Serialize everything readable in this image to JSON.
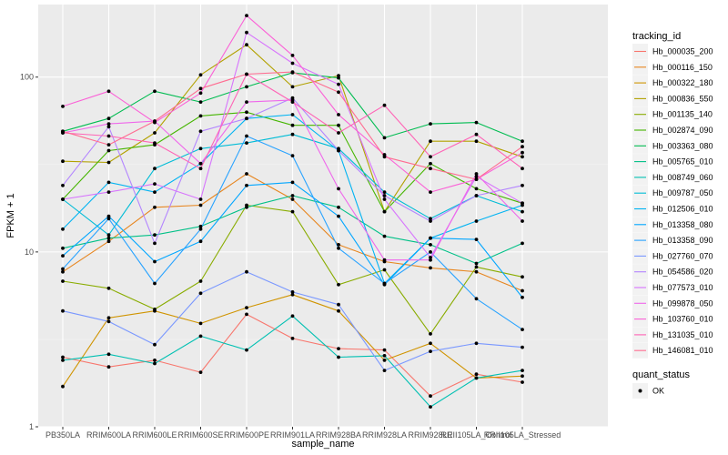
{
  "chart_data": {
    "type": "line",
    "xlabel": "sample_name",
    "ylabel": "FPKM + 1",
    "y_scale": "log10",
    "ylim": [
      1,
      260
    ],
    "y_ticks": [
      1,
      10,
      100
    ],
    "y_tick_labels": [
      "1",
      "10",
      "100"
    ],
    "grid": true,
    "legend_position": "right",
    "categories": [
      "PB350LA",
      "RRIM600LA",
      "RRIM600LE",
      "RRIM600SE",
      "RRIM600PE",
      "RRIM901LA",
      "RRIM928BA",
      "RRIM928LA",
      "RRIM928LE",
      "RRII105LA_Control",
      "RRII105LA_Stressed"
    ],
    "legend": {
      "color_title": "tracking_id",
      "shape_title": "quant_status",
      "shape_entries": [
        "OK"
      ]
    },
    "series": [
      {
        "name": "Hb_000035_200",
        "color": "#F8766D",
        "values": [
          2.5,
          2.2,
          2.4,
          2.05,
          4.4,
          3.2,
          2.8,
          2.75,
          1.5,
          2.0,
          1.8
        ]
      },
      {
        "name": "Hb_000116_150",
        "color": "#E7851E",
        "values": [
          7.7,
          11.5,
          18,
          18.5,
          28,
          20,
          11,
          8.8,
          8.1,
          7.7,
          6.0
        ]
      },
      {
        "name": "Hb_000322_180",
        "color": "#D09400",
        "values": [
          1.7,
          4.2,
          4.6,
          3.9,
          4.8,
          5.7,
          4.6,
          2.4,
          3.0,
          1.9,
          1.95
        ]
      },
      {
        "name": "Hb_000836_550",
        "color": "#B2A100",
        "values": [
          33,
          32.5,
          48,
          103,
          153,
          88,
          102,
          17,
          43,
          43,
          35
        ]
      },
      {
        "name": "Hb_001135_140",
        "color": "#89AC00",
        "values": [
          6.8,
          6.2,
          4.7,
          6.8,
          18.5,
          17,
          6.5,
          7.9,
          3.4,
          8.2,
          7.2
        ]
      },
      {
        "name": "Hb_002874_090",
        "color": "#45B500",
        "values": [
          20,
          38,
          41,
          60,
          63,
          53,
          53,
          17,
          32,
          23,
          19
        ]
      },
      {
        "name": "Hb_003363_080",
        "color": "#00BC51",
        "values": [
          49,
          58,
          83,
          72,
          88,
          106,
          99,
          45,
          54,
          55,
          43
        ]
      },
      {
        "name": "Hb_005765_010",
        "color": "#00C087",
        "values": [
          10.5,
          12,
          12.5,
          14,
          18,
          21,
          18,
          12.3,
          11,
          8.6,
          11.2
        ]
      },
      {
        "name": "Hb_008749_060",
        "color": "#00C0B2",
        "values": [
          2.4,
          2.6,
          2.3,
          3.3,
          2.75,
          4.3,
          2.5,
          2.55,
          1.3,
          1.9,
          2.1
        ]
      },
      {
        "name": "Hb_009787_050",
        "color": "#00BCD6",
        "values": [
          20,
          12.5,
          30,
          39,
          42,
          47,
          39,
          22,
          15.5,
          21,
          17
        ]
      },
      {
        "name": "Hb_012506_010",
        "color": "#00B3F2",
        "values": [
          13.5,
          25,
          22,
          32,
          58,
          61,
          38,
          6.6,
          12,
          15,
          18.5
        ]
      },
      {
        "name": "Hb_013358_080",
        "color": "#00A6FF",
        "values": [
          9.5,
          16,
          8.8,
          11.5,
          24,
          25,
          16,
          6.5,
          12,
          11.8,
          5.5
        ]
      },
      {
        "name": "Hb_013358_090",
        "color": "#29A3FF",
        "values": [
          8,
          15.5,
          6.6,
          13.5,
          46,
          35.5,
          10.5,
          6.6,
          10,
          5.4,
          3.6
        ]
      },
      {
        "name": "Hb_027760_070",
        "color": "#7997FF",
        "values": [
          4.6,
          4.0,
          2.95,
          5.8,
          7.7,
          5.9,
          5.0,
          2.1,
          2.7,
          3.0,
          2.85
        ]
      },
      {
        "name": "Hb_054586_020",
        "color": "#B385FF",
        "values": [
          24,
          52,
          11.2,
          49,
          58,
          76,
          38,
          21,
          15,
          21,
          24
        ]
      },
      {
        "name": "Hb_077573_010",
        "color": "#D774FD",
        "values": [
          20,
          22,
          24.5,
          20,
          180,
          120,
          91,
          20,
          9.3,
          27,
          19
        ]
      },
      {
        "name": "Hb_099878_050",
        "color": "#EF67EB",
        "values": [
          48,
          54,
          56,
          32,
          72,
          74,
          23,
          9.0,
          9.0,
          28,
          15
        ]
      },
      {
        "name": "Hb_103760_010",
        "color": "#FB61D7",
        "values": [
          68,
          83,
          55,
          81,
          225,
          133,
          61,
          36,
          22,
          26,
          37
        ]
      },
      {
        "name": "Hb_131035_010",
        "color": "#FF63B6",
        "values": [
          48,
          46,
          42,
          30,
          104,
          72,
          48,
          69,
          35,
          47,
          30
        ]
      },
      {
        "name": "Hb_146081_010",
        "color": "#FF6C91",
        "values": [
          49,
          41,
          56,
          86,
          104,
          107,
          82,
          35,
          30,
          26,
          40
        ]
      }
    ]
  }
}
